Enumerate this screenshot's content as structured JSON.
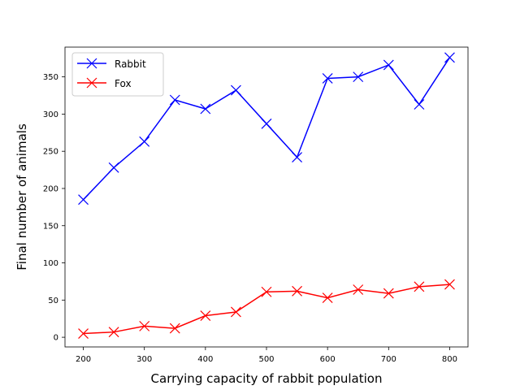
{
  "chart_data": {
    "type": "line",
    "title": "",
    "xlabel": "Carrying capacity of rabbit population",
    "ylabel": "Final number of animals",
    "x": [
      200,
      250,
      300,
      350,
      400,
      450,
      500,
      550,
      600,
      650,
      700,
      750,
      800
    ],
    "xticks": [
      200,
      300,
      400,
      500,
      600,
      700,
      800
    ],
    "yticks": [
      0,
      50,
      100,
      150,
      200,
      250,
      300,
      350
    ],
    "xlim": [
      170,
      830
    ],
    "ylim": [
      -13,
      390
    ],
    "grid": false,
    "legend_position": "top-left",
    "series": [
      {
        "name": "Rabbit",
        "color": "#0000ff",
        "marker": "x",
        "values": [
          185,
          228,
          263,
          319,
          307,
          332,
          287,
          242,
          348,
          350,
          366,
          313,
          376
        ]
      },
      {
        "name": "Fox",
        "color": "#ff0000",
        "marker": "x",
        "values": [
          5,
          7,
          15,
          12,
          29,
          34,
          61,
          62,
          53,
          64,
          59,
          68,
          71
        ]
      }
    ]
  }
}
